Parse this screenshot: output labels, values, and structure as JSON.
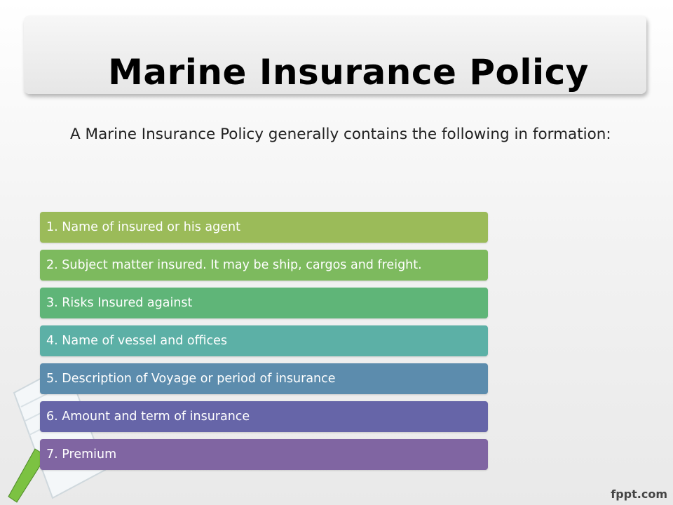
{
  "slide": {
    "title": "Marine Insurance Policy",
    "intro": " A Marine Insurance Policy generally contains the following in formation:"
  },
  "items": [
    {
      "text": "1. Name of insured or his agent",
      "color": "#9bbb59"
    },
    {
      "text": "2. Subject matter insured. It may be ship, cargos and freight.",
      "color": "#7dba5e"
    },
    {
      "text": "3. Risks Insured against",
      "color": "#5fb578"
    },
    {
      "text": "4. Name of vessel and offices",
      "color": "#5cb0a6"
    },
    {
      "text": "5. Description of Voyage or period of insurance",
      "color": "#5c8cad"
    },
    {
      "text": "6. Amount and term of insurance",
      "color": "#6665a8"
    },
    {
      "text": "7. Premium",
      "color": "#8065a2"
    }
  ],
  "footer": {
    "brand": "fppt.com"
  }
}
